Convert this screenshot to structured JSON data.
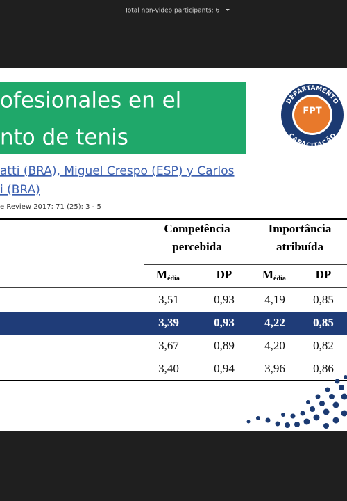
{
  "top_bar": {
    "label": "Total non-video participants: 6"
  },
  "slide": {
    "title_lines": [
      "ofesionales en el",
      "nto de tenis"
    ],
    "logo": {
      "top": "DEPARTAMENTO",
      "center": "FPT",
      "bottom": "CAPACITAÇÃO"
    },
    "authors_lines": [
      "atti (BRA), Miguel Crespo (ESP) y Carlos",
      "i (BRA)"
    ],
    "citation": "e Review 2017; 71 (25): 3 - 5"
  },
  "table": {
    "groups": [
      [
        "Competência",
        "percebida"
      ],
      [
        "Importância",
        "atribuída"
      ]
    ],
    "subheaders": [
      {
        "main": "M",
        "sub": "édia"
      },
      "DP",
      {
        "main": "M",
        "sub": "édia"
      },
      "DP"
    ],
    "rows": [
      [
        "3,51",
        "0,93",
        "4,19",
        "0,85"
      ],
      [
        "3,39",
        "0,93",
        "4,22",
        "0,85"
      ],
      [
        "3,67",
        "0,89",
        "4,20",
        "0,82"
      ],
      [
        "3,40",
        "0,94",
        "3,96",
        "0,86"
      ]
    ],
    "highlight_row": 1
  }
}
